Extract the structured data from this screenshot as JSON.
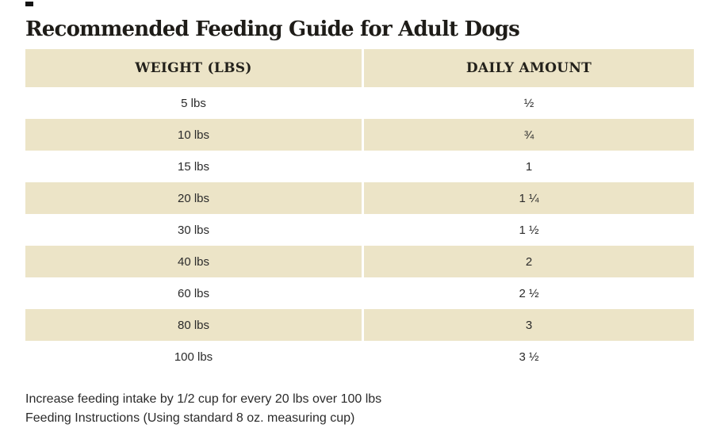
{
  "title": "Recommended Feeding Guide for Adult Dogs",
  "table": {
    "columns": {
      "weight": "WEIGHT (LBS)",
      "amount": "DAILY AMOUNT"
    },
    "rows": [
      {
        "weight": "5 lbs",
        "amount": "½"
      },
      {
        "weight": "10 lbs",
        "amount": "¾"
      },
      {
        "weight": "15 lbs",
        "amount": "1"
      },
      {
        "weight": "20 lbs",
        "amount": "1 ¼"
      },
      {
        "weight": "30 lbs",
        "amount": "1 ½"
      },
      {
        "weight": "40 lbs",
        "amount": "2"
      },
      {
        "weight": "60 lbs",
        "amount": "2 ½"
      },
      {
        "weight": "80 lbs",
        "amount": "3"
      },
      {
        "weight": "100 lbs",
        "amount": "3 ½"
      }
    ]
  },
  "notes": {
    "line1": "Increase feeding intake by 1/2 cup for every 20 lbs over 100 lbs",
    "line2": "Feeding Instructions (Using standard 8 oz. measuring cup)"
  },
  "colors": {
    "row_highlight": "#ece4c7",
    "heading_text": "#1e1c18",
    "body_text": "#2b2b2b"
  }
}
